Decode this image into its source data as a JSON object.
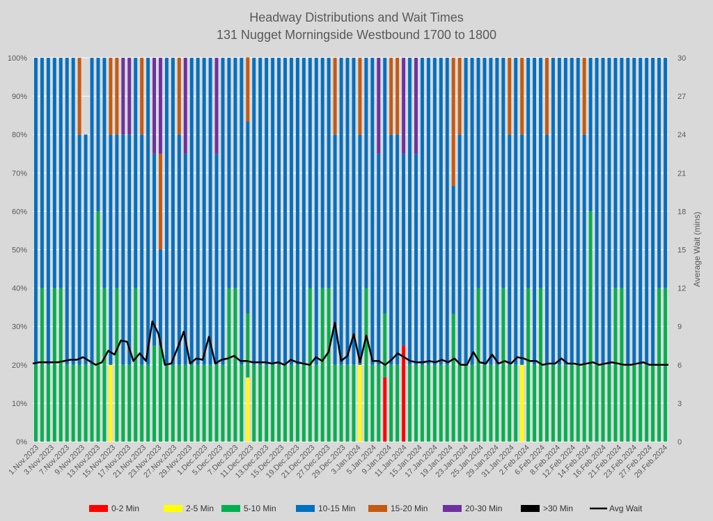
{
  "chart_data": {
    "type": "bar",
    "stacked": true,
    "title": "Headway Distributions and Wait Times",
    "subtitle": "131 Nugget  Morningside Westbound 1700 to 1800",
    "y_left": {
      "ticks": [
        "0%",
        "10%",
        "20%",
        "30%",
        "40%",
        "50%",
        "60%",
        "70%",
        "80%",
        "90%",
        "100%"
      ],
      "ylim": [
        0,
        100
      ]
    },
    "y_right": {
      "label": "Average Wait (mins)",
      "ticks": [
        "0",
        "3",
        "6",
        "9",
        "12",
        "15",
        "18",
        "21",
        "24",
        "27",
        "30"
      ],
      "ylim": [
        0,
        30
      ]
    },
    "x_tick_labels": [
      "1.Nov.2023",
      "3.Nov.2023",
      "7.Nov.2023",
      "9.Nov.2023",
      "13.Nov.2023",
      "15.Nov.2023",
      "17.Nov.2023",
      "21.Nov.2023",
      "23.Nov.2023",
      "27.Nov.2023",
      "29.Nov.2023",
      "1.Dec.2023",
      "5.Dec.2023",
      "7.Dec.2023",
      "11.Dec.2023",
      "13.Dec.2023",
      "15.Dec.2023",
      "19.Dec.2023",
      "21.Dec.2023",
      "27.Dec.2023",
      "29.Dec.2023",
      "3.Jan.2024",
      "5.Jan.2024",
      "9.Jan.2024",
      "11.Jan.2024",
      "15.Jan.2024",
      "17.Jan.2024",
      "19.Jan.2024",
      "23.Jan.2024",
      "25.Jan.2024",
      "29.Jan.2024",
      "31.Jan.2024",
      "2.Feb.2024",
      "6.Feb.2024",
      "8.Feb.2024",
      "12.Feb.2024",
      "14.Feb.2024",
      "16.Feb.2024",
      "21.Feb.2024",
      "23.Feb.2024",
      "27.Feb.2024",
      "29.Feb.2024"
    ],
    "series": [
      {
        "name": "0-2 Min",
        "color": "#ff0000"
      },
      {
        "name": "2-5 Min",
        "color": "#ffff00"
      },
      {
        "name": "5-10 Min",
        "color": "#00b050"
      },
      {
        "name": "10-15 Min",
        "color": "#0070c0"
      },
      {
        "name": "15-20 Min",
        "color": "#c55a11"
      },
      {
        "name": "20-30 Min",
        "color": "#7030a0"
      },
      {
        "name": ">30 Min",
        "color": "#000000"
      },
      {
        "name": "Avg Wait",
        "color": "#000000"
      }
    ],
    "bars": [
      [
        0,
        0,
        20,
        80,
        0,
        0,
        0
      ],
      [
        0,
        0,
        40,
        60,
        0,
        0,
        0
      ],
      [
        0,
        0,
        20,
        80,
        0,
        0,
        0
      ],
      [
        0,
        0,
        40,
        60,
        0,
        0,
        0
      ],
      [
        0,
        0,
        40,
        60,
        0,
        0,
        0
      ],
      [
        0,
        0,
        20,
        80,
        0,
        0,
        0
      ],
      [
        0,
        0,
        20,
        80,
        0,
        0,
        0
      ],
      [
        0,
        0,
        20,
        60,
        20,
        0,
        0
      ],
      [
        0,
        0,
        20,
        60,
        0,
        0,
        0
      ],
      [
        0,
        0,
        20,
        80,
        0,
        0,
        0
      ],
      [
        0,
        0,
        60,
        40,
        0,
        0,
        0
      ],
      [
        0,
        0,
        40,
        60,
        0,
        0,
        0
      ],
      [
        0,
        20,
        0,
        60,
        20,
        0,
        0
      ],
      [
        0,
        0,
        40,
        40,
        20,
        0,
        0
      ],
      [
        0,
        0,
        20,
        60,
        0,
        20,
        0
      ],
      [
        0,
        0,
        20,
        60,
        0,
        20,
        0
      ],
      [
        0,
        0,
        40,
        60,
        0,
        0,
        0
      ],
      [
        0,
        0,
        20,
        60,
        20,
        0,
        0
      ],
      [
        0,
        0,
        20,
        80,
        0,
        0,
        0
      ],
      [
        0,
        0,
        25,
        50,
        0,
        25,
        0
      ],
      [
        0,
        0,
        25,
        25,
        25,
        25,
        0
      ],
      [
        0,
        0,
        20,
        80,
        0,
        0,
        0
      ],
      [
        0,
        0,
        20,
        80,
        0,
        0,
        0
      ],
      [
        0,
        0,
        20,
        60,
        20,
        0,
        0
      ],
      [
        0,
        0,
        20,
        55,
        0,
        25,
        0
      ],
      [
        0,
        0,
        20,
        80,
        0,
        0,
        0
      ],
      [
        0,
        0,
        20,
        80,
        0,
        0,
        0
      ],
      [
        0,
        0,
        20,
        80,
        0,
        0,
        0
      ],
      [
        0,
        0,
        20,
        80,
        0,
        0,
        0
      ],
      [
        0,
        0,
        20,
        55,
        0,
        25,
        0
      ],
      [
        0,
        0,
        20,
        80,
        0,
        0,
        0
      ],
      [
        0,
        0,
        40,
        60,
        0,
        0,
        0
      ],
      [
        0,
        0,
        40,
        60,
        0,
        0,
        0
      ],
      [
        0,
        0,
        20,
        80,
        0,
        0,
        0
      ],
      [
        0,
        16.7,
        16.7,
        50,
        16.7,
        0,
        0
      ],
      [
        0,
        0,
        20,
        80,
        0,
        0,
        0
      ],
      [
        0,
        0,
        20,
        80,
        0,
        0,
        0
      ],
      [
        0,
        0,
        20,
        80,
        0,
        0,
        0
      ],
      [
        0,
        0,
        20,
        80,
        0,
        0,
        0
      ],
      [
        0,
        0,
        20,
        80,
        0,
        0,
        0
      ],
      [
        0,
        0,
        20,
        80,
        0,
        0,
        0
      ],
      [
        0,
        0,
        20,
        80,
        0,
        0,
        0
      ],
      [
        0,
        0,
        20,
        80,
        0,
        0,
        0
      ],
      [
        0,
        0,
        20,
        80,
        0,
        0,
        0
      ],
      [
        0,
        0,
        40,
        60,
        0,
        0,
        0
      ],
      [
        0,
        0,
        20,
        80,
        0,
        0,
        0
      ],
      [
        0,
        0,
        40,
        60,
        0,
        0,
        0
      ],
      [
        0,
        0,
        40,
        60,
        0,
        0,
        0
      ],
      [
        0,
        0,
        20,
        60,
        20,
        0,
        0
      ],
      [
        0,
        0,
        20,
        80,
        0,
        0,
        0
      ],
      [
        0,
        0,
        20,
        80,
        0,
        0,
        0
      ],
      [
        0,
        0,
        20,
        80,
        0,
        0,
        0
      ],
      [
        0,
        20,
        0,
        60,
        20,
        0,
        0
      ],
      [
        0,
        0,
        40,
        60,
        0,
        0,
        0
      ],
      [
        0,
        0,
        20,
        80,
        0,
        0,
        0
      ],
      [
        0,
        0,
        20,
        55,
        0,
        25,
        0
      ],
      [
        16.7,
        0,
        16.7,
        66.6,
        0,
        0,
        0
      ],
      [
        0,
        0,
        20,
        60,
        20,
        0,
        0
      ],
      [
        0,
        0,
        20,
        60,
        20,
        0,
        0
      ],
      [
        25,
        0,
        0,
        50,
        0,
        25,
        0
      ],
      [
        0,
        0,
        20,
        80,
        0,
        0,
        0
      ],
      [
        0,
        0,
        20,
        55,
        0,
        25,
        0
      ],
      [
        0,
        0,
        20,
        80,
        0,
        0,
        0
      ],
      [
        0,
        0,
        20,
        80,
        0,
        0,
        0
      ],
      [
        0,
        0,
        20,
        80,
        0,
        0,
        0
      ],
      [
        0,
        0,
        20,
        80,
        0,
        0,
        0
      ],
      [
        0,
        0,
        20,
        80,
        0,
        0,
        0
      ],
      [
        0,
        0,
        33.3,
        33.3,
        33.4,
        0,
        0
      ],
      [
        0,
        0,
        20,
        60,
        20,
        0,
        0
      ],
      [
        0,
        0,
        20,
        80,
        0,
        0,
        0
      ],
      [
        0,
        0,
        20,
        80,
        0,
        0,
        0
      ],
      [
        0,
        0,
        40,
        60,
        0,
        0,
        0
      ],
      [
        0,
        0,
        20,
        80,
        0,
        0,
        0
      ],
      [
        0,
        0,
        20,
        80,
        0,
        0,
        0
      ],
      [
        0,
        0,
        20,
        80,
        0,
        0,
        0
      ],
      [
        0,
        0,
        40,
        60,
        0,
        0,
        0
      ],
      [
        0,
        0,
        20,
        60,
        20,
        0,
        0
      ],
      [
        0,
        0,
        20,
        80,
        0,
        0,
        0
      ],
      [
        0,
        20,
        0,
        60,
        20,
        0,
        0
      ],
      [
        0,
        0,
        40,
        60,
        0,
        0,
        0
      ],
      [
        0,
        0,
        20,
        80,
        0,
        0,
        0
      ],
      [
        0,
        0,
        40,
        60,
        0,
        0,
        0
      ],
      [
        0,
        0,
        20,
        60,
        20,
        0,
        0
      ],
      [
        0,
        0,
        20,
        80,
        0,
        0,
        0
      ],
      [
        0,
        0,
        20,
        80,
        0,
        0,
        0
      ],
      [
        0,
        0,
        20,
        80,
        0,
        0,
        0
      ],
      [
        0,
        0,
        20,
        80,
        0,
        0,
        0
      ],
      [
        0,
        0,
        20,
        80,
        0,
        0,
        0
      ],
      [
        0,
        0,
        20,
        60,
        20,
        0,
        0
      ],
      [
        0,
        0,
        60,
        40,
        0,
        0,
        0
      ],
      [
        0,
        0,
        20,
        80,
        0,
        0,
        0
      ],
      [
        0,
        0,
        20,
        80,
        0,
        0,
        0
      ],
      [
        0,
        0,
        20,
        80,
        0,
        0,
        0
      ],
      [
        0,
        0,
        40,
        60,
        0,
        0,
        0
      ],
      [
        0,
        0,
        40,
        60,
        0,
        0,
        0
      ],
      [
        0,
        0,
        20,
        80,
        0,
        0,
        0
      ],
      [
        0,
        0,
        20,
        80,
        0,
        0,
        0
      ],
      [
        0,
        0,
        20,
        80,
        0,
        0,
        0
      ],
      [
        0,
        0,
        20,
        80,
        0,
        0,
        0
      ],
      [
        0,
        0,
        20,
        80,
        0,
        0,
        0
      ],
      [
        0,
        0,
        40,
        60,
        0,
        0,
        0
      ],
      [
        0,
        0,
        40,
        60,
        0,
        0,
        0
      ]
    ],
    "avg_wait": [
      6.1,
      6.2,
      6.2,
      6.2,
      6.2,
      6.3,
      6.4,
      6.4,
      6.6,
      6.3,
      6.0,
      6.2,
      7.1,
      6.8,
      7.9,
      7.8,
      6.3,
      6.9,
      6.3,
      9.4,
      8.4,
      6.0,
      6.1,
      7.3,
      8.6,
      6.1,
      6.5,
      6.4,
      8.2,
      6.1,
      6.4,
      6.5,
      6.7,
      6.3,
      6.3,
      6.2,
      6.2,
      6.2,
      6.1,
      6.2,
      6.0,
      6.4,
      6.2,
      6.1,
      6.0,
      6.6,
      6.3,
      7.0,
      9.3,
      6.3,
      6.7,
      8.4,
      6.2,
      8.3,
      6.3,
      6.3,
      6.0,
      6.4,
      6.9,
      6.6,
      6.3,
      6.2,
      6.2,
      6.3,
      6.2,
      6.4,
      6.2,
      6.5,
      6.0,
      6.0,
      7.0,
      6.2,
      6.1,
      6.8,
      6.1,
      6.3,
      6.1,
      6.6,
      6.5,
      6.3,
      6.3,
      6.0,
      6.1,
      6.1,
      6.5,
      6.1,
      6.1,
      6.0,
      6.1,
      6.2,
      6.0,
      6.1,
      6.2,
      6.1,
      6.0,
      6.0,
      6.1,
      6.2,
      6.0,
      6.0,
      6.0,
      6.0
    ],
    "legend_position": "bottom"
  }
}
